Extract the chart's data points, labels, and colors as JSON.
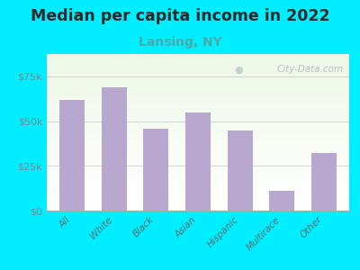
{
  "title": "Median per capita income in 2022",
  "subtitle": "Lansing, NY",
  "categories": [
    "All",
    "White",
    "Black",
    "Asian",
    "Hispanic",
    "Multirace",
    "Other"
  ],
  "values": [
    62000,
    69000,
    46000,
    55000,
    45000,
    11000,
    32000
  ],
  "bar_color": "#b8a8d0",
  "background_outer": "#00eeff",
  "title_color": "#2a2a2a",
  "subtitle_color": "#4aaaaa",
  "ytick_color": "#7a8888",
  "xtick_color": "#5a7070",
  "ylim": [
    0,
    87500
  ],
  "yticks": [
    0,
    25000,
    50000,
    75000
  ],
  "ytick_labels": [
    "$0",
    "$25k",
    "$50k",
    "$75k"
  ],
  "watermark": "City-Data.com",
  "title_fontsize": 12.5,
  "subtitle_fontsize": 10
}
